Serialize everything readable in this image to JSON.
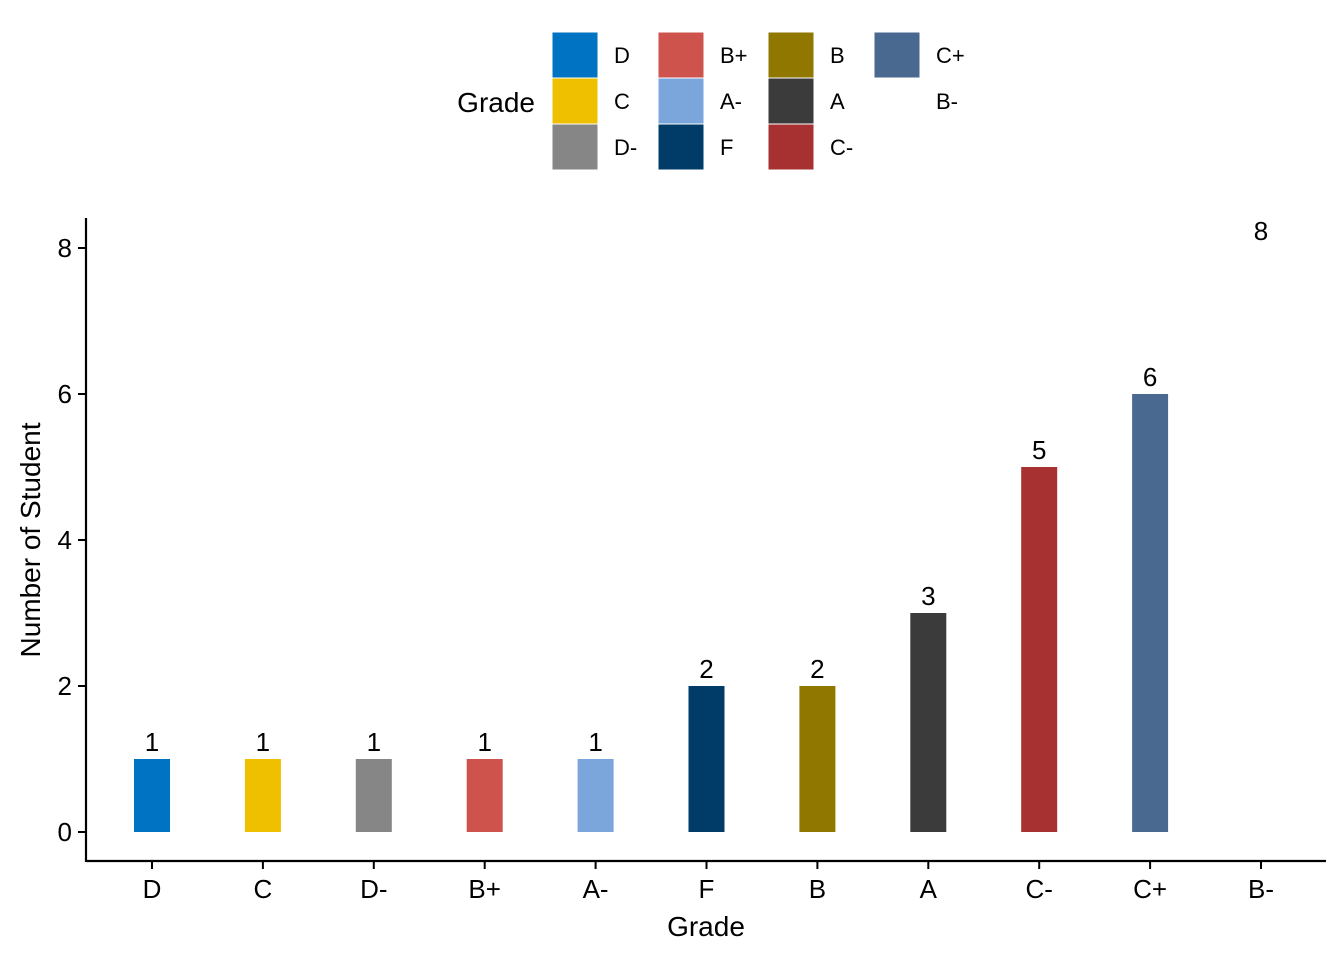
{
  "chart_data": {
    "type": "bar",
    "categories": [
      "D",
      "C",
      "D-",
      "B+",
      "A-",
      "F",
      "B",
      "A",
      "C-",
      "C+",
      "B-"
    ],
    "values": [
      1,
      1,
      1,
      1,
      1,
      2,
      2,
      3,
      5,
      6,
      8
    ],
    "colors": [
      "#0073C2",
      "#EFC000",
      "#868686",
      "#CD534C",
      "#7AA6DC",
      "#003C67",
      "#8F7700",
      "#3B3B3B",
      "#A73030",
      "#4A6990",
      "#FFFFFF"
    ],
    "data_labels": [
      "1",
      "1",
      "1",
      "1",
      "1",
      "2",
      "2",
      "3",
      "5",
      "6",
      "8"
    ],
    "xlabel": "Grade",
    "ylabel": "Number of Student",
    "ylim": [
      0,
      8
    ],
    "yticks": [
      0,
      2,
      4,
      6,
      8
    ],
    "grid": false,
    "legend": {
      "title": "Grade",
      "placement": "top",
      "entries": [
        "D",
        "C",
        "D-",
        "B+",
        "A-",
        "F",
        "B",
        "A",
        "C-",
        "C+",
        "B-"
      ]
    }
  }
}
